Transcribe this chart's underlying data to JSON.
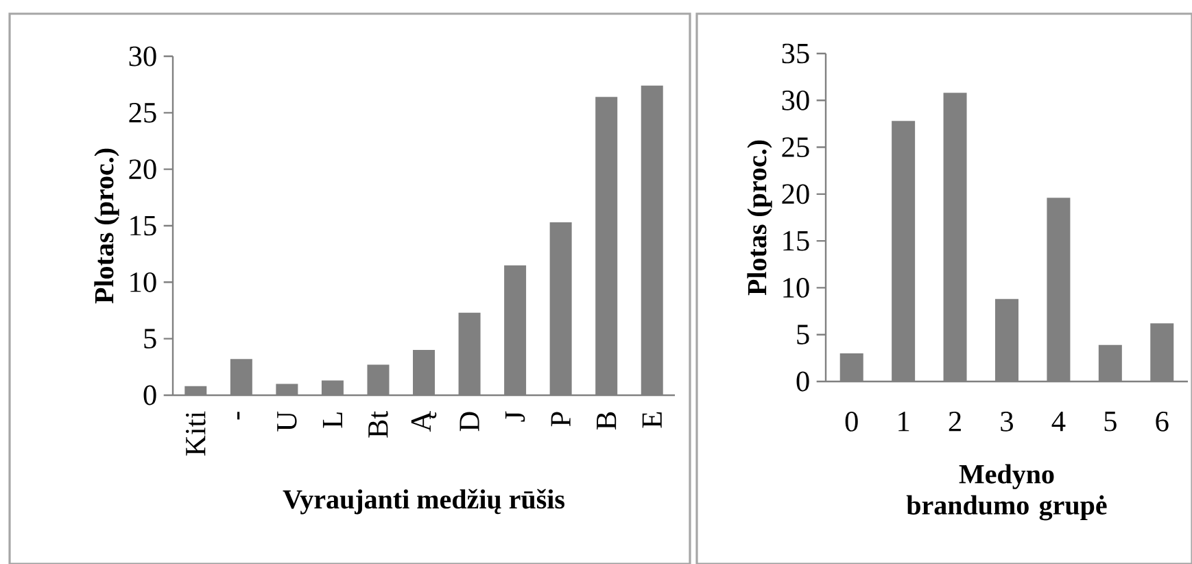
{
  "chart_data": [
    {
      "type": "bar",
      "categories": [
        "Kiti",
        "-",
        "U",
        "L",
        "Bt",
        "Ą",
        "D",
        "J",
        "P",
        "B",
        "E"
      ],
      "values": [
        0.8,
        3.2,
        1.0,
        1.3,
        2.7,
        4.0,
        7.3,
        11.5,
        15.3,
        26.4,
        27.4
      ],
      "color": "#808080",
      "ylim": [
        0,
        30
      ],
      "yticks": [
        0,
        5,
        10,
        15,
        20,
        25,
        30
      ],
      "xlabel": "Vyraujanti  medžių rūšis",
      "ylabel": "Plotas (proc.)"
    },
    {
      "type": "bar",
      "categories": [
        "0",
        "1",
        "2",
        "3",
        "4",
        "5",
        "6"
      ],
      "values": [
        3.0,
        27.8,
        30.8,
        8.8,
        19.6,
        3.9,
        6.2
      ],
      "color": "#808080",
      "ylim": [
        0,
        35
      ],
      "yticks": [
        0,
        5,
        10,
        15,
        20,
        25,
        30,
        35
      ],
      "xlabel": "Medyno brandumo grupė",
      "ylabel": "Plotas (proc.)"
    }
  ]
}
